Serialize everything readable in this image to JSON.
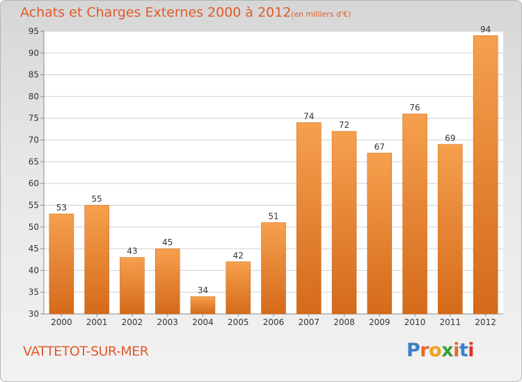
{
  "header": {
    "title": "Achats et Charges Externes 2000 à 2012",
    "unit_note": "(en milliers d'€)"
  },
  "footer": {
    "town": "VATTETOT-SUR-MER",
    "logo_letters": [
      "P",
      "r",
      "o",
      "x",
      "i",
      "t",
      "i"
    ],
    "logo_colors": [
      "#3a7fc7",
      "#e8682a",
      "#f0a21c",
      "#3a9e3a",
      "#e8682a",
      "#3a7fc7",
      "#e03030"
    ]
  },
  "colors": {
    "bar_top": "#f6a04e",
    "bar_bottom": "#d46a1a",
    "bar_edge": "#c66010",
    "grid": "#cfcfcf",
    "plot_bg": "#ffffff",
    "axis": "#888888",
    "title": "#e05a2a"
  },
  "chart_data": {
    "type": "bar",
    "title": "Achats et Charges Externes 2000 à 2012",
    "subtitle": "(en milliers d'€)",
    "xlabel": "",
    "ylabel": "",
    "categories": [
      "2000",
      "2001",
      "2002",
      "2003",
      "2004",
      "2005",
      "2006",
      "2007",
      "2008",
      "2009",
      "2010",
      "2011",
      "2012"
    ],
    "values": [
      53,
      55,
      43,
      45,
      34,
      42,
      51,
      74,
      72,
      67,
      76,
      69,
      94
    ],
    "ylim": [
      30,
      95
    ],
    "yticks": [
      30,
      35,
      40,
      45,
      50,
      55,
      60,
      65,
      70,
      75,
      80,
      85,
      90,
      95
    ],
    "grid": true,
    "data_labels": true,
    "legend": "none"
  }
}
